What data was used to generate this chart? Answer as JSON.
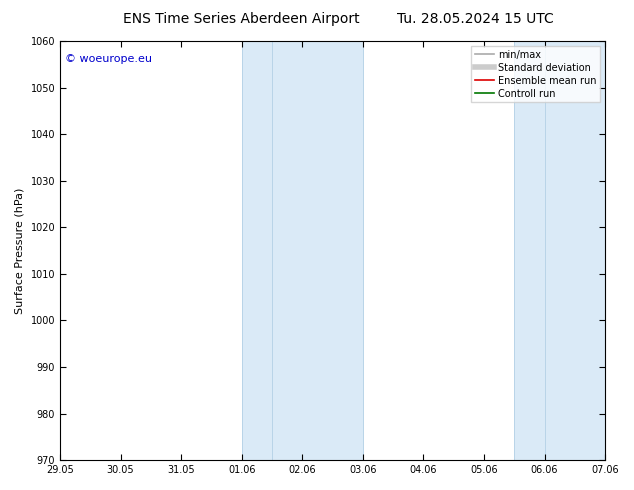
{
  "title_left": "ENS Time Series Aberdeen Airport",
  "title_right": "Tu. 28.05.2024 15 UTC",
  "ylabel": "Surface Pressure (hPa)",
  "ylim": [
    970,
    1060
  ],
  "yticks": [
    970,
    980,
    990,
    1000,
    1010,
    1020,
    1030,
    1040,
    1050,
    1060
  ],
  "xtick_labels": [
    "29.05",
    "30.05",
    "31.05",
    "01.06",
    "02.06",
    "03.06",
    "04.06",
    "05.06",
    "06.06",
    "07.06"
  ],
  "xtick_positions": [
    0,
    1,
    2,
    3,
    4,
    5,
    6,
    7,
    8,
    9
  ],
  "shaded_regions": [
    {
      "xmin": 3.0,
      "xmax": 5.0,
      "color": "#daeaf7"
    },
    {
      "xmin": 7.5,
      "xmax": 9.0,
      "color": "#daeaf7"
    }
  ],
  "shaded_lines": [
    3.0,
    3.5,
    5.0,
    7.5,
    8.0
  ],
  "watermark_text": "© woeurope.eu",
  "watermark_color": "#0000cc",
  "watermark_fontsize": 8,
  "legend_items": [
    {
      "label": "min/max",
      "color": "#aaaaaa",
      "lw": 1.2,
      "ls": "-"
    },
    {
      "label": "Standard deviation",
      "color": "#cccccc",
      "lw": 4,
      "ls": "-"
    },
    {
      "label": "Ensemble mean run",
      "color": "#dd0000",
      "lw": 1.2,
      "ls": "-"
    },
    {
      "label": "Controll run",
      "color": "#007700",
      "lw": 1.2,
      "ls": "-"
    }
  ],
  "bg_color": "#ffffff",
  "title_fontsize": 10,
  "tick_fontsize": 7,
  "ylabel_fontsize": 8,
  "legend_fontsize": 7
}
